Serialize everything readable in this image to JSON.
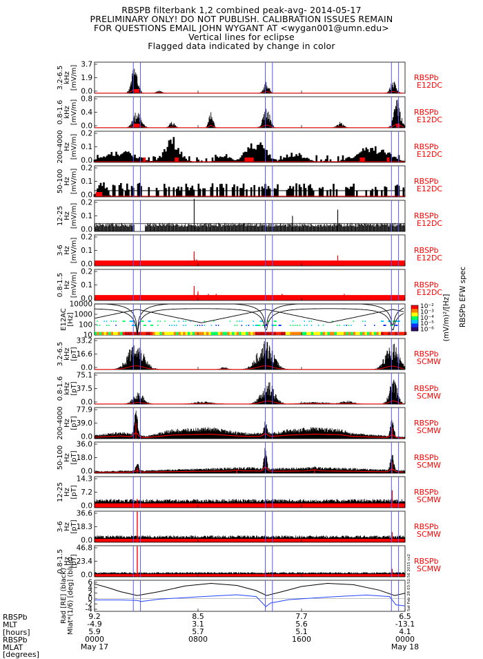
{
  "header": {
    "lines": [
      "RBSPB filterbank 1,2 combined peak-avg- 2014-05-17",
      "PRELIMINARY ONLY! DO NOT PUBLISH. CALIBRATION ISSUES REMAIN",
      "FOR QUESTIONS EMAIL JOHN WYGANT AT <wygan001@umn.edu>",
      "Vertical lines for eclipse",
      "Flagged data indicated by change in color"
    ]
  },
  "colors": {
    "peak": "#000000",
    "avg": "#ff0000",
    "eclipse": "#5555ff",
    "label": "#ff0000",
    "mlat": "#2244ff"
  },
  "eclipse_hours": [
    3.0,
    3.55,
    13.2,
    13.75,
    22.95,
    23.5
  ],
  "chart_data": [
    {
      "type": "line",
      "name": "efw-3.2-6.5",
      "ylabel": "3.2-6.5\nkHz\n[mV/m]",
      "yticks": [
        "3.7",
        "1.9",
        "0.0"
      ],
      "ylim": [
        0,
        3.7
      ],
      "inst": [
        "RBSPb",
        "E12DC"
      ],
      "style": "bursty",
      "bursts": [
        [
          3.1,
          0.45,
          3.4
        ],
        [
          13.3,
          0.4,
          1.4
        ],
        [
          23.1,
          0.45,
          1.5
        ],
        [
          5.0,
          0.4,
          0.3
        ]
      ],
      "avg_level": 0.12,
      "flags": [
        [
          3.05,
          3.45
        ]
      ]
    },
    {
      "type": "line",
      "name": "efw-0.8-1.6",
      "ylabel": "0.8-1.6\nkHz\n[mV/m]",
      "yticks": [
        "0.8",
        "0.4",
        "0.0"
      ],
      "ylim": [
        0,
        0.8
      ],
      "inst": [
        "RBSPb",
        "E12DC"
      ],
      "style": "bursty",
      "bursts": [
        [
          3.3,
          0.6,
          0.45
        ],
        [
          13.3,
          0.5,
          0.55
        ],
        [
          23.4,
          0.5,
          0.75
        ],
        [
          9.0,
          0.3,
          0.5
        ],
        [
          6.0,
          0.4,
          0.15
        ],
        [
          19.0,
          0.5,
          0.15
        ]
      ],
      "avg_level": 0.02,
      "flags": [
        [
          3.0,
          3.5
        ],
        [
          23.3,
          23.6
        ]
      ]
    },
    {
      "type": "bar",
      "name": "efw-200-4000",
      "ylabel": "200-4000\nHz\n[mV/m]",
      "yticks": [
        "0.2",
        "0.1",
        "0.0"
      ],
      "ylim": [
        0,
        0.2
      ],
      "inst": [
        "RBSPb",
        "E12DC"
      ],
      "style": "steps",
      "bursts": [
        [
          6.0,
          1.2,
          0.17
        ],
        [
          12.5,
          1.5,
          0.16
        ],
        [
          21.5,
          2.5,
          0.11
        ],
        [
          2.0,
          2.5,
          0.08
        ],
        [
          15.5,
          1.5,
          0.07
        ],
        [
          10.0,
          1.0,
          0.06
        ]
      ],
      "flags": [
        [
          3.75,
          3.95
        ],
        [
          6.2,
          6.5
        ],
        [
          11.6,
          12.3
        ],
        [
          20.5,
          20.9
        ],
        [
          22.6,
          22.8
        ]
      ]
    },
    {
      "type": "bar",
      "name": "efw-50-100",
      "ylabel": "50-100\nHz\n[mV/m]",
      "yticks": [
        "0.2",
        "0.1",
        "0.0"
      ],
      "ylim": [
        0,
        0.2
      ],
      "inst": [
        "RBSPb",
        "E12DC"
      ],
      "style": "steps",
      "bursts": [
        [
          0.6,
          0.6,
          0.14
        ]
      ],
      "flags": [
        [
          0.1,
          0.6
        ]
      ],
      "base": 0.04
    },
    {
      "type": "bar",
      "name": "efw-12-25",
      "ylabel": "12-25\nHz\n[mV/m]",
      "yticks": [
        "0.2",
        "0.1",
        "0.0"
      ],
      "ylim": [
        0,
        0.2
      ],
      "inst": [
        "RBSPb",
        "E12DC"
      ],
      "style": "dense",
      "bursts": [
        [
          7.7,
          0.05,
          0.21
        ],
        [
          18.8,
          0.05,
          0.14
        ],
        [
          15.3,
          0.05,
          0.1
        ]
      ],
      "base": 0.05
    },
    {
      "type": "line",
      "name": "efw-3-6",
      "ylabel": "3-6\nHz\n[mV/m]",
      "yticks": [
        "0.2",
        "0.1",
        "0.0"
      ],
      "ylim": [
        0,
        0.2
      ],
      "inst": [
        "RBSPb",
        "E12DC"
      ],
      "style": "spikes",
      "bursts": [
        [
          7.7,
          0.05,
          0.11
        ],
        [
          7.9,
          0.05,
          0.05
        ],
        [
          18.8,
          0.05,
          0.08
        ],
        [
          19.0,
          0.05,
          0.04
        ]
      ],
      "avg_level": 0.035,
      "avg_fill": true
    },
    {
      "type": "line",
      "name": "efw-0.8-1.5",
      "ylabel": "0.8-1.5\nHz\n[mV/m]",
      "yticks": [
        "0.2",
        "0.1",
        "0.0"
      ],
      "ylim": [
        0,
        0.2
      ],
      "inst": [
        "RBSPb",
        "E12DC"
      ],
      "style": "spikes",
      "bursts": [
        [
          7.7,
          0.05,
          0.11
        ],
        [
          8.0,
          0.05,
          0.07
        ],
        [
          8.8,
          0.05,
          0.05
        ],
        [
          9.4,
          0.05,
          0.05
        ],
        [
          14.5,
          0.05,
          0.05
        ],
        [
          19.3,
          0.05,
          0.05
        ]
      ],
      "avg_level": 0.035,
      "avg_fill": true
    },
    {
      "type": "heatmap",
      "name": "e12ac-spec",
      "ylabel": "E12AC\n[Hz]",
      "yticks": [
        "10000",
        "1000",
        "100",
        "10"
      ],
      "ylim": [
        10,
        10000
      ],
      "yscale": "log",
      "colorbar_label": "(mV/m)²/[Hz]",
      "colorbar_ticks": [
        "10⁻²",
        "10⁻³",
        "10⁻⁴",
        "10⁻⁵",
        "10⁻⁶"
      ],
      "colorbar_title": "RBSPb EFW spec"
    },
    {
      "type": "line",
      "name": "scm-3.2-6.5",
      "ylabel": "3.2-6.5\nkHz\n[pT]",
      "yticks": [
        "33.2",
        "16.6",
        "0.0"
      ],
      "ylim": [
        0,
        33.2
      ],
      "inst": [
        "RBSPb",
        "SCMW"
      ],
      "style": "bursty",
      "bursts": [
        [
          3.2,
          1.2,
          31
        ],
        [
          13.2,
          1.2,
          31
        ],
        [
          23.0,
          1.0,
          29
        ],
        [
          10.0,
          0.5,
          3
        ]
      ],
      "avg_level": 1.0
    },
    {
      "type": "line",
      "name": "scm-0.8-1.6",
      "ylabel": "0.8-1.6\nkHz\n[pT]",
      "yticks": [
        "75.1",
        "37.5",
        "0.0"
      ],
      "ylim": [
        0,
        75.1
      ],
      "inst": [
        "RBSPb",
        "SCMW"
      ],
      "style": "bursty",
      "bursts": [
        [
          3.4,
          0.8,
          28
        ],
        [
          13.4,
          1.0,
          55
        ],
        [
          23.1,
          0.6,
          60
        ],
        [
          8.5,
          1.5,
          6
        ],
        [
          17.0,
          2.0,
          5
        ],
        [
          19.5,
          1.0,
          8
        ]
      ],
      "avg_level": 2.5
    },
    {
      "type": "line",
      "name": "scm-200-4000",
      "ylabel": "200-4000\nHz\n[pT]",
      "yticks": [
        "77.9",
        "39.0",
        "0.0"
      ],
      "ylim": [
        0,
        77.9
      ],
      "inst": [
        "RBSPb",
        "SCMW"
      ],
      "style": "smooth",
      "bursts": [
        [
          3.2,
          0.3,
          72
        ],
        [
          13.2,
          0.3,
          45
        ],
        [
          23.0,
          0.3,
          50
        ]
      ],
      "envelope": [
        [
          0,
          8
        ],
        [
          2,
          15
        ],
        [
          3,
          10
        ],
        [
          4,
          6
        ],
        [
          6,
          20
        ],
        [
          9,
          25
        ],
        [
          11,
          15
        ],
        [
          12,
          12
        ],
        [
          14,
          14
        ],
        [
          15,
          20
        ],
        [
          17,
          25
        ],
        [
          19,
          22
        ],
        [
          20,
          12
        ],
        [
          22,
          8
        ],
        [
          23.5,
          5
        ],
        [
          24,
          4
        ]
      ]
    },
    {
      "type": "line",
      "name": "scm-50-100",
      "ylabel": "50-100\nHz\n[pT]",
      "yticks": [
        "36.0",
        "18.0",
        "0.0"
      ],
      "ylim": [
        0,
        36.0
      ],
      "inst": [
        "RBSPb",
        "SCMW"
      ],
      "style": "smooth",
      "bursts": [
        [
          3.3,
          0.3,
          12
        ],
        [
          13.2,
          0.25,
          35
        ],
        [
          23.0,
          0.3,
          24
        ],
        [
          17.0,
          0.5,
          8
        ],
        [
          11.0,
          0.5,
          6
        ]
      ],
      "envelope": [
        [
          0,
          2
        ],
        [
          4,
          3
        ],
        [
          6,
          4
        ],
        [
          9,
          5
        ],
        [
          12,
          6
        ],
        [
          14,
          5
        ],
        [
          17,
          6
        ],
        [
          20,
          5
        ],
        [
          22,
          4
        ],
        [
          24,
          3
        ]
      ]
    },
    {
      "type": "line",
      "name": "scm-12-25",
      "ylabel": "12-25\nHz\n[pT]",
      "yticks": [
        "14.3",
        "7.2",
        "0.0"
      ],
      "ylim": [
        0,
        14.3
      ],
      "inst": [
        "RBSPb",
        "SCMW"
      ],
      "style": "noise",
      "bursts": [
        [
          23.0,
          0.1,
          8
        ],
        [
          3.3,
          0.1,
          4
        ]
      ],
      "noise": [
        2.5,
        4.0
      ]
    },
    {
      "type": "line",
      "name": "scm-3-6",
      "ylabel": "3-6\nHz\n[pT]",
      "yticks": [
        "36.6",
        "18.3",
        "0.0"
      ],
      "ylim": [
        0,
        36.6
      ],
      "inst": [
        "RBSPb",
        "SCMW"
      ],
      "style": "noise",
      "bursts": [
        [
          3.3,
          0.05,
          36
        ],
        [
          23.0,
          0.05,
          12
        ]
      ],
      "noise": [
        5.0,
        8.0
      ]
    },
    {
      "type": "line",
      "name": "scm-0.8-1.5",
      "ylabel": "0.8-1.5\nHz\n[pT]",
      "yticks": [
        "46.8",
        "23.4",
        "0.0"
      ],
      "ylim": [
        0,
        46.8
      ],
      "inst": [
        "RBSPb",
        "SCMW"
      ],
      "style": "noise",
      "bursts": [
        [
          3.3,
          0.05,
          46
        ],
        [
          13.2,
          0.05,
          10
        ],
        [
          23.0,
          0.05,
          12
        ]
      ],
      "noise": [
        5.0,
        7.0
      ]
    },
    {
      "type": "line",
      "name": "ephem",
      "ylabel": "Rad [RE] (black)\nMlat*(1/6) [deg] (blue)",
      "yticks": [
        "6",
        "4",
        "2",
        "0",
        "-2",
        "-4"
      ],
      "ylim": [
        -5,
        7
      ],
      "series": [
        {
          "name": "Rad [RE] (black)",
          "color": "#000000",
          "x": [
            0,
            1,
            2,
            3.3,
            5,
            7,
            9,
            11,
            12.5,
            13.3,
            14.5,
            16,
            18,
            20,
            22,
            23.2,
            24
          ],
          "values": [
            5.6,
            4.2,
            2.6,
            1.1,
            2.6,
            4.8,
            5.8,
            5.0,
            3.0,
            1.1,
            2.6,
            4.6,
            5.8,
            5.3,
            3.2,
            1.1,
            2.0
          ]
        },
        {
          "name": "Mlat*(1/6) [deg] (blue)",
          "color": "#2244ff",
          "x": [
            0,
            2,
            3.3,
            3.6,
            5,
            8,
            11,
            12.5,
            13.25,
            13.6,
            15,
            18,
            21,
            22.8,
            23.3,
            24
          ],
          "values": [
            -0.6,
            -0.6,
            -0.8,
            -1.2,
            -0.3,
            0.6,
            1.4,
            0.7,
            -3.2,
            -1.8,
            -0.5,
            0.5,
            1.3,
            0.7,
            -2.5,
            -2.9
          ]
        }
      ],
      "timestamp": "Sat Feb 28 03:52:56 2015 cx2"
    }
  ],
  "xaxis": {
    "row_labels": [
      "RBSPb",
      "MLT",
      "[hours]",
      "RBSPb",
      "MLAT",
      "[degrees]"
    ],
    "ticks": [
      {
        "hour": 0,
        "rad": "9.2",
        "mlt": "-4.9",
        "mlat": "5.9",
        "time": "0000",
        "date": "May 17"
      },
      {
        "hour": 8,
        "rad": "8.5",
        "mlt": "3.1",
        "mlat": "5.7",
        "time": "0800",
        "date": ""
      },
      {
        "hour": 16,
        "rad": "7.7",
        "mlt": "5.6",
        "mlat": "5.1",
        "time": "1600",
        "date": ""
      },
      {
        "hour": 24,
        "rad": "6.5",
        "mlt": "-13.1",
        "mlat": "4.1",
        "time": "0000",
        "date": "May 18"
      }
    ]
  }
}
